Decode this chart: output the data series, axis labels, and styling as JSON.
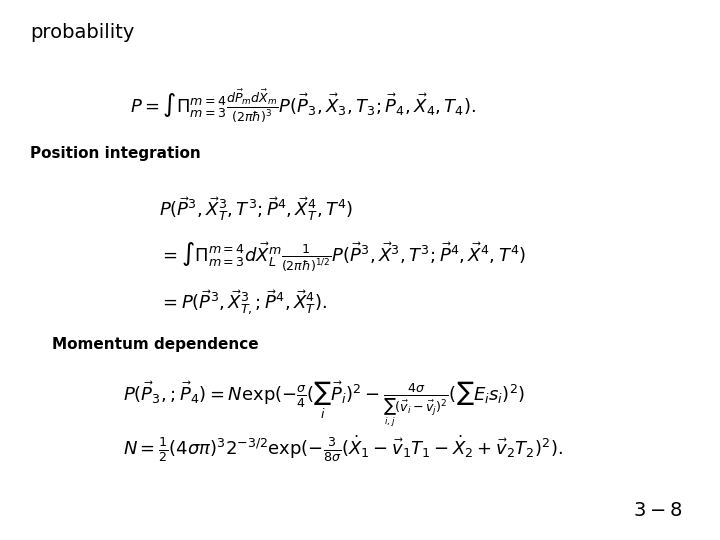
{
  "title": "probability",
  "eq1": "P = \\int \\Pi_{m=3}^{m=4} \\frac{d\\vec{P}_m d\\vec{X}_m}{(2\\pi\\hbar)^3} P(\\vec{P}_3, \\vec{X}_3, T_3; \\vec{P}_4, \\vec{X}_4, T_4).",
  "label_position": "Position integration",
  "eq2_line1": "P(\\vec{P}^3, \\vec{X}_T^3, T^3; \\vec{P}^4, \\vec{X}_T^4, T^4)",
  "eq2_line2": "= \\int \\Pi_{m=3}^{m=4} d\\vec{X}_L^m \\frac{1}{(2\\pi\\hbar)^{1/2}} P(\\vec{P}^3, \\vec{X}^3, T^3; \\vec{P}^4, \\vec{X}^4, T^4)",
  "eq2_line3": "= P(\\vec{P}^3, \\vec{X}_{T,}^3; \\vec{P}^4, \\vec{X}_T^4).",
  "label_momentum": "Momentum dependence",
  "eq3_line1": "P(\\vec{P}_3, ; \\vec{P}_4) = N \\exp(-\\frac{\\sigma}{4}(\\sum_i \\vec{P}_i)^2 - \\frac{4\\sigma}{\\sum_{i,j}(\\vec{v}_i - \\vec{v}_j)^2}(\\sum E_i s_i)^2)",
  "eq3_line2": "N = \\frac{1}{2}(4\\sigma\\pi)^3 2^{-3/2} \\exp(-\\frac{3}{8\\sigma}(\\dot{X}_1 - \\vec{v}_1 T_1 - \\dot{X}_2 + \\vec{v}_2 T_2)^2).",
  "page_number": "3-8",
  "bg_color": "#ffffff",
  "text_color": "#000000"
}
